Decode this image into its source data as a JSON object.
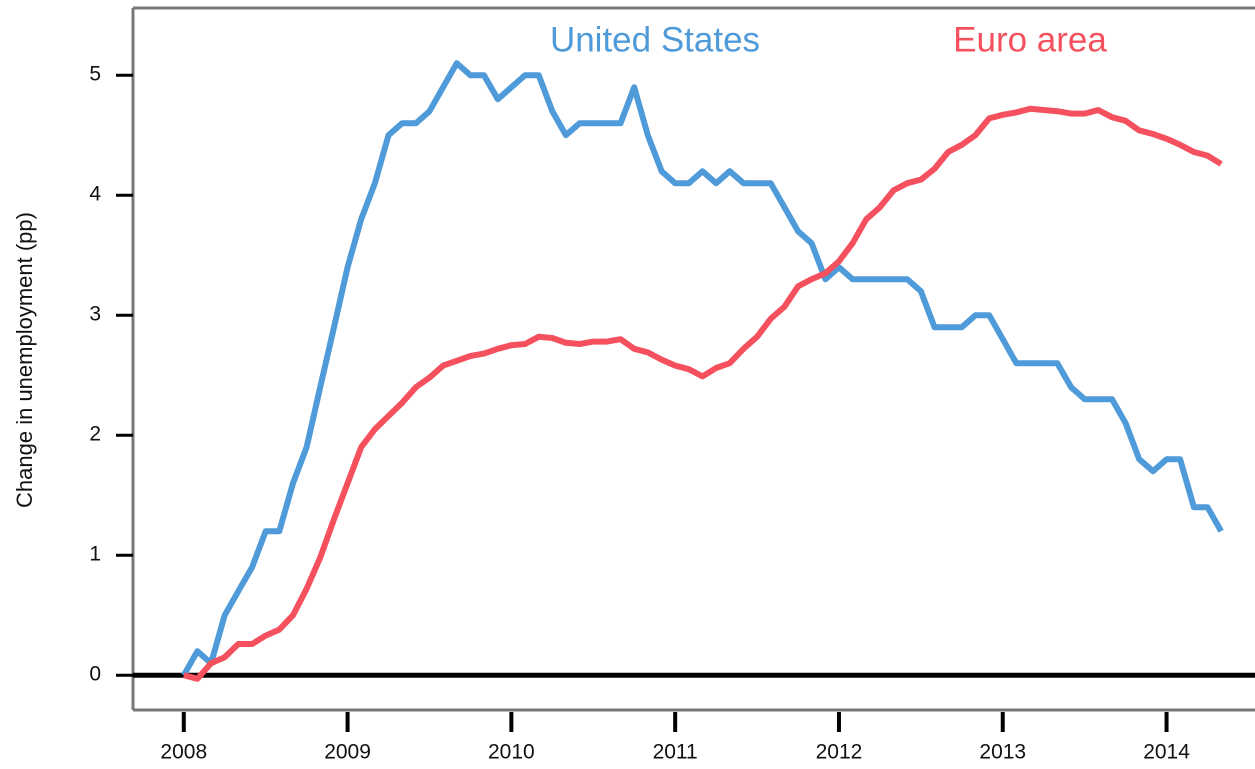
{
  "chart_data": {
    "type": "line",
    "y_label": "Change in unemployment (pp)",
    "x": [
      2008,
      2008.083,
      2008.167,
      2008.25,
      2008.333,
      2008.417,
      2008.5,
      2008.583,
      2008.667,
      2008.75,
      2008.833,
      2008.917,
      2009,
      2009.083,
      2009.167,
      2009.25,
      2009.333,
      2009.417,
      2009.5,
      2009.583,
      2009.667,
      2009.75,
      2009.833,
      2009.917,
      2010,
      2010.083,
      2010.167,
      2010.25,
      2010.333,
      2010.417,
      2010.5,
      2010.583,
      2010.667,
      2010.75,
      2010.833,
      2010.917,
      2011,
      2011.083,
      2011.167,
      2011.25,
      2011.333,
      2011.417,
      2011.5,
      2011.583,
      2011.667,
      2011.75,
      2011.833,
      2011.917,
      2012,
      2012.083,
      2012.167,
      2012.25,
      2012.333,
      2012.417,
      2012.5,
      2012.583,
      2012.667,
      2012.75,
      2012.833,
      2012.917,
      2013,
      2013.083,
      2013.167,
      2013.25,
      2013.333,
      2013.417,
      2013.5,
      2013.583,
      2013.667,
      2013.75,
      2013.833,
      2013.917,
      2014,
      2014.083,
      2014.167,
      2014.25,
      2014.333
    ],
    "series": [
      {
        "name": "United States",
        "color": "#4f9ad8",
        "values": [
          0,
          0.2,
          0.1,
          0.5,
          0.7,
          0.9,
          1.2,
          1.2,
          1.6,
          1.9,
          2.4,
          2.9,
          3.4,
          3.8,
          4.1,
          4.5,
          4.6,
          4.6,
          4.7,
          4.9,
          5.1,
          5.0,
          5.0,
          4.8,
          4.9,
          5.0,
          5.0,
          4.7,
          4.5,
          4.6,
          4.6,
          4.6,
          4.6,
          4.9,
          4.5,
          4.2,
          4.1,
          4.1,
          4.2,
          4.1,
          4.2,
          4.1,
          4.1,
          4.1,
          3.9,
          3.7,
          3.6,
          3.3,
          3.4,
          3.3,
          3.3,
          3.3,
          3.3,
          3.3,
          3.2,
          2.9,
          2.9,
          2.9,
          3.0,
          3.0,
          2.8,
          2.6,
          2.6,
          2.6,
          2.6,
          2.4,
          2.3,
          2.3,
          2.3,
          2.1,
          1.8,
          1.7,
          1.8,
          1.8,
          1.4,
          1.4,
          1.2
        ]
      },
      {
        "name": "Euro area",
        "color": "#f5505e",
        "values": [
          0,
          -0.03,
          0.1,
          0.15,
          0.26,
          0.26,
          0.33,
          0.38,
          0.5,
          0.72,
          0.98,
          1.3,
          1.6,
          1.9,
          2.05,
          2.16,
          2.27,
          2.4,
          2.48,
          2.58,
          2.62,
          2.66,
          2.68,
          2.72,
          2.75,
          2.76,
          2.82,
          2.81,
          2.77,
          2.76,
          2.78,
          2.78,
          2.8,
          2.72,
          2.69,
          2.63,
          2.58,
          2.55,
          2.49,
          2.56,
          2.6,
          2.72,
          2.82,
          2.97,
          3.07,
          3.24,
          3.3,
          3.35,
          3.45,
          3.6,
          3.8,
          3.9,
          4.04,
          4.1,
          4.13,
          4.22,
          4.36,
          4.42,
          4.5,
          4.64,
          4.67,
          4.69,
          4.72,
          4.71,
          4.7,
          4.68,
          4.68,
          4.71,
          4.65,
          4.62,
          4.54,
          4.51,
          4.47,
          4.42,
          4.36,
          4.33,
          4.26
        ]
      }
    ],
    "xlim": [
      2007.69,
      2014.54
    ],
    "xticks": [
      2008,
      2009,
      2010,
      2011,
      2012,
      2013,
      2014
    ],
    "ylim": [
      -0.29,
      5.56
    ],
    "yticks": [
      0,
      1,
      2,
      3,
      4,
      5
    ]
  }
}
